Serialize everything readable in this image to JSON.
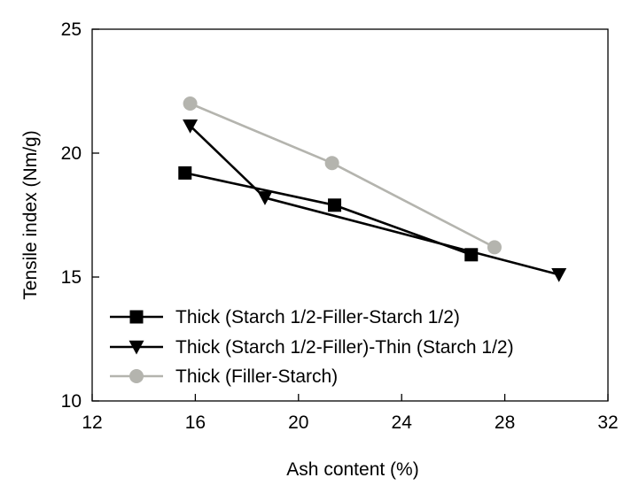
{
  "chart_data": {
    "type": "line",
    "title": "",
    "xlabel": "Ash content (%)",
    "ylabel": "Tensile index (Nm/g)",
    "xlim": [
      12,
      32
    ],
    "ylim": [
      10,
      25
    ],
    "xticks": [
      12,
      16,
      20,
      24,
      28,
      32
    ],
    "yticks": [
      10,
      15,
      20,
      25
    ],
    "legend_position": "bottom-left",
    "grid": false,
    "series": [
      {
        "name": "Thick (Starch 1/2-Filler-Starch 1/2)",
        "marker": "square",
        "color": "#000000",
        "points": [
          [
            15.6,
            19.2
          ],
          [
            21.4,
            17.9
          ],
          [
            26.7,
            15.9
          ]
        ]
      },
      {
        "name": "Thick (Starch 1/2-Filler)-Thin (Starch 1/2)",
        "marker": "triangle-down",
        "color": "#000000",
        "points": [
          [
            15.8,
            21.1
          ],
          [
            18.7,
            18.2
          ],
          [
            30.1,
            15.1
          ]
        ]
      },
      {
        "name": "Thick (Filler-Starch)",
        "marker": "circle",
        "color": "#b4b4ae",
        "points": [
          [
            15.8,
            22.0
          ],
          [
            21.3,
            19.6
          ],
          [
            27.6,
            16.2
          ]
        ]
      }
    ]
  }
}
